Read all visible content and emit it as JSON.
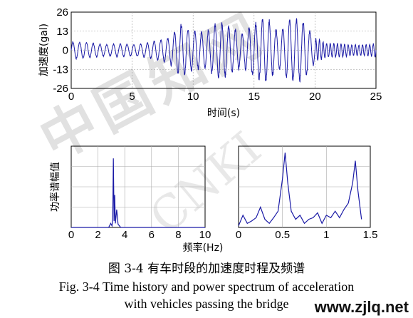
{
  "chart_data": [
    {
      "type": "line",
      "panel": "top",
      "xlabel": "时间(s)",
      "ylabel": "加速度(gal)",
      "xlim": [
        0,
        25
      ],
      "ylim": [
        -26,
        26
      ],
      "x_ticks": [
        "0",
        "5",
        "10",
        "15",
        "20",
        "25"
      ],
      "y_ticks": [
        "26",
        "13",
        "0",
        "-13",
        "-26"
      ],
      "grid": true,
      "series": [
        {
          "color": "#1a1aa6",
          "envelope": {
            "t": [
              0,
              1,
              2,
              3,
              4,
              5,
              6,
              7,
              8,
              9,
              10,
              11,
              12,
              13,
              14,
              15,
              16,
              17,
              18,
              19,
              20,
              21,
              22,
              23,
              24,
              25
            ],
            "amplitude": [
              6,
              6,
              5,
              4,
              5,
              4,
              5,
              7,
              9,
              19,
              14,
              13,
              20,
              18,
              12,
              19,
              24,
              13,
              23,
              22,
              9,
              5,
              5,
              4,
              4,
              5
            ]
          }
        }
      ]
    },
    {
      "type": "line",
      "panel": "bottom-left",
      "ylabel": "功率谱幅值",
      "xlim": [
        0,
        10
      ],
      "ylim": [
        0,
        1
      ],
      "x_ticks": [
        "0",
        "2",
        "4",
        "6",
        "8",
        "10"
      ],
      "grid": true,
      "series": [
        {
          "color": "#1a1aa6",
          "x": [
            0,
            2.8,
            2.95,
            3.05,
            3.1,
            3.15,
            3.2,
            3.25,
            3.3,
            3.4,
            3.5,
            3.6,
            3.7,
            10
          ],
          "y": [
            0,
            0,
            0.05,
            0.02,
            0.1,
            0.85,
            0.08,
            0.4,
            0.05,
            0.22,
            0.04,
            0.02,
            0,
            0
          ]
        }
      ]
    },
    {
      "type": "line",
      "panel": "bottom-right",
      "xlabel": "频率(Hz)",
      "xlim": [
        0,
        1.5
      ],
      "ylim": [
        0,
        1
      ],
      "x_ticks": [
        "0",
        "0.5",
        "1",
        "1.5"
      ],
      "grid": true,
      "series": [
        {
          "color": "#1a1aa6",
          "x": [
            0,
            0.05,
            0.1,
            0.15,
            0.2,
            0.25,
            0.3,
            0.35,
            0.4,
            0.45,
            0.5,
            0.53,
            0.56,
            0.6,
            0.65,
            0.7,
            0.75,
            0.8,
            0.85,
            0.9,
            0.95,
            1.0,
            1.05,
            1.1,
            1.15,
            1.2,
            1.25,
            1.3,
            1.33,
            1.36,
            1.4
          ],
          "y": [
            0.02,
            0.15,
            0.05,
            0.08,
            0.12,
            0.25,
            0.1,
            0.05,
            0.12,
            0.2,
            0.6,
            0.92,
            0.55,
            0.2,
            0.1,
            0.15,
            0.05,
            0.1,
            0.12,
            0.18,
            0.05,
            0.15,
            0.12,
            0.2,
            0.12,
            0.22,
            0.3,
            0.55,
            0.82,
            0.45,
            0.1
          ]
        }
      ]
    }
  ],
  "caption": {
    "cn": "图  3-4  有车时段的加速度时程及频谱",
    "en_line1": "Fig. 3-4 Time history and power spectrum of acceleration",
    "en_line2": "with vehicles passing the bridge"
  },
  "watermark": {
    "cn": "中国知网",
    "en": "CNKI",
    "site": "www.zjlq.net"
  }
}
